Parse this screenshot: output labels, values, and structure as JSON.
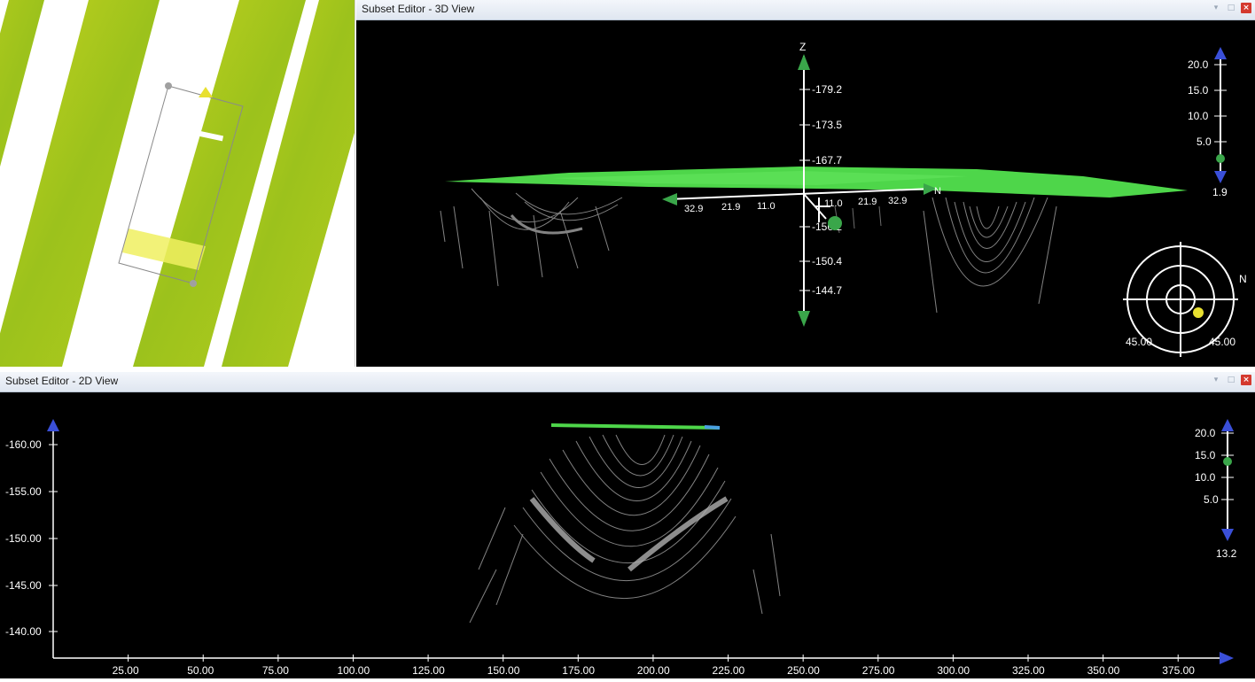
{
  "view3d": {
    "title": "Subset Editor - 3D View",
    "axis_label": "Z",
    "z_ticks": [
      "-179.2",
      "-173.5",
      "-167.7",
      "-156.2",
      "-150.4",
      "-144.7"
    ],
    "horiz_ticks_left": [
      "32.9",
      "21.9",
      "11.0"
    ],
    "horiz_ticks_right": [
      "11.0",
      "21.9",
      "32.9"
    ],
    "north_label": "N",
    "scale_ticks": [
      "20.0",
      "15.0",
      "10.0",
      "5.0"
    ],
    "scale_value": "1.9",
    "compass": {
      "north": "N",
      "left_angle": "45.00",
      "right_angle": "45.00"
    }
  },
  "view2d": {
    "title": "Subset Editor - 2D View",
    "y_ticks": [
      "-160.00",
      "-155.00",
      "-150.00",
      "-145.00",
      "-140.00"
    ],
    "x_ticks": [
      "25.00",
      "50.00",
      "75.00",
      "100.00",
      "125.00",
      "150.00",
      "175.00",
      "200.00",
      "225.00",
      "250.00",
      "275.00",
      "300.00",
      "325.00",
      "350.00",
      "375.00"
    ],
    "scale_ticks": [
      "20.0",
      "15.0",
      "10.0",
      "5.0"
    ],
    "scale_value": "13.2"
  },
  "colors": {
    "swath": "#a8c81e",
    "surface": "#4ed64a",
    "points": "#9a9a9a",
    "marker": "#3aa64a",
    "arrow_blue": "#3a4fd8"
  }
}
